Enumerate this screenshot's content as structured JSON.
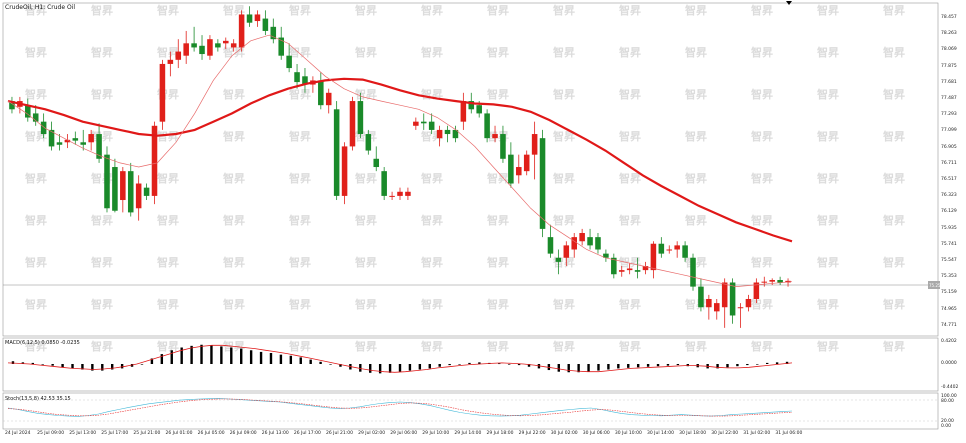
{
  "title": "CrudeOil, H1: Crude Oil",
  "price_axis": [
    "78.457",
    "78.263",
    "78.069",
    "77.875",
    "77.681",
    "77.487",
    "77.293",
    "77.099",
    "76.905",
    "76.711",
    "76.517",
    "76.323",
    "76.129",
    "75.935",
    "75.741",
    "75.547",
    "75.353",
    "75.159",
    "74.965",
    "74.771"
  ],
  "current_price_label": "75.259",
  "macd_label": "MACD(6,12,5) 0.0850 -0.0235",
  "macd_axis": [
    "0.4202",
    "0.0000",
    "-0.4402"
  ],
  "stoch_label": "Stoch(13,5,8) 42.53 35.15",
  "stoch_axis": [
    "100.00",
    "80.00",
    "20.00",
    "0.00"
  ],
  "time_labels": [
    "24 Jul 2024",
    "25 Jul 09:00",
    "25 Jul 13:00",
    "25 Jul 17:00",
    "25 Jul 21:00",
    "26 Jul 01:00",
    "26 Jul 05:00",
    "26 Jul 09:00",
    "26 Jul 13:00",
    "26 Jul 17:00",
    "26 Jul 21:00",
    "29 Jul 02:00",
    "29 Jul 06:00",
    "29 Jul 10:00",
    "29 Jul 14:00",
    "29 Jul 18:00",
    "29 Jul 22:00",
    "30 Jul 02:00",
    "30 Jul 06:00",
    "30 Jul 10:00",
    "30 Jul 14:00",
    "30 Jul 18:00",
    "30 Jul 22:00",
    "31 Jul 02:00",
    "31 Jul 06:00"
  ],
  "watermark_text": "智昇",
  "colors": {
    "bull": "#e0201a",
    "bear": "#1a8a2a",
    "ma_slow": "#e01818",
    "ma_fast": "#e86a6a",
    "macd_line": "#e01818",
    "macd_hist": "#000000",
    "stoch_main": "#40b8d8",
    "stoch_signal": "#e83030"
  },
  "chart_data": {
    "type": "candlestick",
    "title": "CrudeOil, H1: Crude Oil",
    "ylim": [
      74.6,
      78.6
    ],
    "candles": [
      {
        "o": 77.45,
        "h": 77.5,
        "l": 77.3,
        "c": 77.35
      },
      {
        "o": 77.38,
        "h": 77.5,
        "l": 77.3,
        "c": 77.45
      },
      {
        "o": 77.4,
        "h": 77.48,
        "l": 77.2,
        "c": 77.25
      },
      {
        "o": 77.3,
        "h": 77.4,
        "l": 77.15,
        "c": 77.2
      },
      {
        "o": 77.2,
        "h": 77.3,
        "l": 77.0,
        "c": 77.05
      },
      {
        "o": 77.1,
        "h": 77.2,
        "l": 76.85,
        "c": 76.9
      },
      {
        "o": 76.95,
        "h": 77.05,
        "l": 76.85,
        "c": 76.92
      },
      {
        "o": 76.95,
        "h": 77.05,
        "l": 76.88,
        "c": 76.98
      },
      {
        "o": 77.0,
        "h": 77.08,
        "l": 76.92,
        "c": 76.97
      },
      {
        "o": 76.95,
        "h": 77.1,
        "l": 76.85,
        "c": 76.92
      },
      {
        "o": 76.95,
        "h": 77.1,
        "l": 76.85,
        "c": 77.05
      },
      {
        "o": 77.05,
        "h": 77.18,
        "l": 76.7,
        "c": 76.75
      },
      {
        "o": 76.8,
        "h": 76.9,
        "l": 76.1,
        "c": 76.15
      },
      {
        "o": 76.65,
        "h": 76.75,
        "l": 76.1,
        "c": 76.12
      },
      {
        "o": 76.25,
        "h": 76.65,
        "l": 76.1,
        "c": 76.6
      },
      {
        "o": 76.6,
        "h": 76.7,
        "l": 76.05,
        "c": 76.1
      },
      {
        "o": 76.15,
        "h": 76.55,
        "l": 76.0,
        "c": 76.45
      },
      {
        "o": 76.4,
        "h": 76.45,
        "l": 76.25,
        "c": 76.3
      },
      {
        "o": 76.3,
        "h": 77.2,
        "l": 76.2,
        "c": 77.15
      },
      {
        "o": 77.2,
        "h": 77.95,
        "l": 77.1,
        "c": 77.9
      },
      {
        "o": 77.9,
        "h": 78.05,
        "l": 77.75,
        "c": 77.95
      },
      {
        "o": 77.95,
        "h": 78.2,
        "l": 77.85,
        "c": 78.05
      },
      {
        "o": 78.0,
        "h": 78.3,
        "l": 77.9,
        "c": 78.15
      },
      {
        "o": 78.15,
        "h": 78.35,
        "l": 78.05,
        "c": 78.1
      },
      {
        "o": 78.12,
        "h": 78.25,
        "l": 77.95,
        "c": 78.02
      },
      {
        "o": 78.0,
        "h": 78.25,
        "l": 77.95,
        "c": 78.2
      },
      {
        "o": 78.15,
        "h": 78.2,
        "l": 78.05,
        "c": 78.1
      },
      {
        "o": 78.15,
        "h": 78.22,
        "l": 78.08,
        "c": 78.18
      },
      {
        "o": 78.1,
        "h": 78.2,
        "l": 78.05,
        "c": 78.15
      },
      {
        "o": 78.1,
        "h": 78.55,
        "l": 78.05,
        "c": 78.5
      },
      {
        "o": 78.5,
        "h": 78.6,
        "l": 78.35,
        "c": 78.4
      },
      {
        "o": 78.42,
        "h": 78.55,
        "l": 78.35,
        "c": 78.5
      },
      {
        "o": 78.45,
        "h": 78.55,
        "l": 78.25,
        "c": 78.3
      },
      {
        "o": 78.35,
        "h": 78.45,
        "l": 78.15,
        "c": 78.2
      },
      {
        "o": 78.22,
        "h": 78.35,
        "l": 77.95,
        "c": 78.0
      },
      {
        "o": 78.0,
        "h": 78.15,
        "l": 77.8,
        "c": 77.85
      },
      {
        "o": 77.8,
        "h": 77.9,
        "l": 77.6,
        "c": 77.68
      },
      {
        "o": 77.75,
        "h": 77.85,
        "l": 77.55,
        "c": 77.65
      },
      {
        "o": 77.65,
        "h": 77.75,
        "l": 77.55,
        "c": 77.7
      },
      {
        "o": 77.7,
        "h": 77.8,
        "l": 77.35,
        "c": 77.4
      },
      {
        "o": 77.4,
        "h": 77.6,
        "l": 77.3,
        "c": 77.55
      },
      {
        "o": 77.35,
        "h": 77.45,
        "l": 76.25,
        "c": 76.3
      },
      {
        "o": 76.3,
        "h": 76.95,
        "l": 76.2,
        "c": 76.9
      },
      {
        "o": 76.9,
        "h": 77.5,
        "l": 76.85,
        "c": 77.45
      },
      {
        "o": 77.45,
        "h": 77.55,
        "l": 77.0,
        "c": 77.05
      },
      {
        "o": 77.05,
        "h": 77.1,
        "l": 76.8,
        "c": 76.85
      },
      {
        "o": 76.75,
        "h": 76.9,
        "l": 76.6,
        "c": 76.65
      },
      {
        "o": 76.6,
        "h": 76.65,
        "l": 76.25,
        "c": 76.3
      },
      {
        "o": 76.3,
        "h": 76.35,
        "l": 76.25,
        "c": 76.3
      },
      {
        "o": 76.3,
        "h": 76.4,
        "l": 76.25,
        "c": 76.35
      },
      {
        "o": 76.3,
        "h": 76.4,
        "l": 76.25,
        "c": 76.35
      },
      {
        "o": 77.15,
        "h": 77.25,
        "l": 77.1,
        "c": 77.2
      },
      {
        "o": 77.2,
        "h": 77.3,
        "l": 77.1,
        "c": 77.18
      },
      {
        "o": 77.2,
        "h": 77.3,
        "l": 77.05,
        "c": 77.1
      },
      {
        "o": 77.0,
        "h": 77.15,
        "l": 76.9,
        "c": 77.1
      },
      {
        "o": 77.1,
        "h": 77.15,
        "l": 76.95,
        "c": 77.05
      },
      {
        "o": 77.1,
        "h": 77.15,
        "l": 76.95,
        "c": 77.0
      },
      {
        "o": 77.2,
        "h": 77.55,
        "l": 77.1,
        "c": 77.45
      },
      {
        "o": 77.45,
        "h": 77.55,
        "l": 77.3,
        "c": 77.35
      },
      {
        "o": 77.4,
        "h": 77.45,
        "l": 77.25,
        "c": 77.3
      },
      {
        "o": 77.3,
        "h": 77.35,
        "l": 76.95,
        "c": 77.0
      },
      {
        "o": 77.0,
        "h": 77.15,
        "l": 76.95,
        "c": 77.05
      },
      {
        "o": 77.05,
        "h": 77.15,
        "l": 76.7,
        "c": 76.75
      },
      {
        "o": 76.8,
        "h": 76.95,
        "l": 76.4,
        "c": 76.45
      },
      {
        "o": 76.55,
        "h": 76.8,
        "l": 76.45,
        "c": 76.65
      },
      {
        "o": 76.6,
        "h": 76.85,
        "l": 76.55,
        "c": 76.8
      },
      {
        "o": 76.8,
        "h": 77.2,
        "l": 76.5,
        "c": 77.05
      },
      {
        "o": 77.0,
        "h": 77.1,
        "l": 75.8,
        "c": 75.9
      },
      {
        "o": 75.8,
        "h": 75.95,
        "l": 75.55,
        "c": 75.6
      },
      {
        "o": 75.55,
        "h": 75.65,
        "l": 75.35,
        "c": 75.5
      },
      {
        "o": 75.55,
        "h": 75.75,
        "l": 75.45,
        "c": 75.7
      },
      {
        "o": 75.65,
        "h": 75.85,
        "l": 75.55,
        "c": 75.8
      },
      {
        "o": 75.75,
        "h": 75.9,
        "l": 75.7,
        "c": 75.85
      },
      {
        "o": 75.8,
        "h": 75.9,
        "l": 75.65,
        "c": 75.7
      },
      {
        "o": 75.8,
        "h": 75.85,
        "l": 75.6,
        "c": 75.65
      },
      {
        "o": 75.6,
        "h": 75.65,
        "l": 75.5,
        "c": 75.55
      },
      {
        "o": 75.55,
        "h": 75.6,
        "l": 75.3,
        "c": 75.35
      },
      {
        "o": 75.38,
        "h": 75.45,
        "l": 75.32,
        "c": 75.4
      },
      {
        "o": 75.4,
        "h": 75.48,
        "l": 75.35,
        "c": 75.42
      },
      {
        "o": 75.4,
        "h": 75.55,
        "l": 75.3,
        "c": 75.38
      },
      {
        "o": 75.4,
        "h": 75.5,
        "l": 75.35,
        "c": 75.45
      },
      {
        "o": 75.4,
        "h": 75.75,
        "l": 75.3,
        "c": 75.72
      },
      {
        "o": 75.72,
        "h": 75.8,
        "l": 75.55,
        "c": 75.6
      },
      {
        "o": 75.65,
        "h": 75.7,
        "l": 75.6,
        "c": 75.65
      },
      {
        "o": 75.65,
        "h": 75.75,
        "l": 75.55,
        "c": 75.7
      },
      {
        "o": 75.7,
        "h": 75.75,
        "l": 75.5,
        "c": 75.55
      },
      {
        "o": 75.55,
        "h": 75.6,
        "l": 75.15,
        "c": 75.2
      },
      {
        "o": 75.2,
        "h": 75.3,
        "l": 74.9,
        "c": 74.95
      },
      {
        "o": 74.95,
        "h": 75.1,
        "l": 74.8,
        "c": 75.05
      },
      {
        "o": 74.9,
        "h": 75.05,
        "l": 74.8,
        "c": 75.0
      },
      {
        "o": 74.95,
        "h": 75.3,
        "l": 74.7,
        "c": 75.25
      },
      {
        "o": 75.25,
        "h": 75.3,
        "l": 74.75,
        "c": 74.85
      },
      {
        "o": 74.95,
        "h": 75.0,
        "l": 74.7,
        "c": 74.95
      },
      {
        "o": 74.95,
        "h": 75.1,
        "l": 74.9,
        "c": 75.05
      },
      {
        "o": 75.05,
        "h": 75.3,
        "l": 75.0,
        "c": 75.25
      },
      {
        "o": 75.25,
        "h": 75.32,
        "l": 75.2,
        "c": 75.26
      },
      {
        "o": 75.26,
        "h": 75.3,
        "l": 75.22,
        "c": 75.28
      },
      {
        "o": 75.28,
        "h": 75.32,
        "l": 75.22,
        "c": 75.25
      },
      {
        "o": 75.25,
        "h": 75.3,
        "l": 75.2,
        "c": 75.27
      }
    ],
    "ma_slow": [
      77.45,
      77.4,
      77.35,
      77.28,
      77.2,
      77.15,
      77.1,
      77.05,
      77.03,
      77.05,
      77.1,
      77.2,
      77.3,
      77.42,
      77.52,
      77.6,
      77.66,
      77.7,
      77.72,
      77.71,
      77.65,
      77.58,
      77.52,
      77.48,
      77.45,
      77.42,
      77.41,
      77.38,
      77.32,
      77.22,
      77.1,
      76.98,
      76.85,
      76.7,
      76.55,
      76.42,
      76.3,
      76.18,
      76.08,
      75.98,
      75.9,
      75.82,
      75.75
    ],
    "ma_fast": [
      77.45,
      77.3,
      77.12,
      77.0,
      76.88,
      76.78,
      76.7,
      76.65,
      76.7,
      76.95,
      77.3,
      77.7,
      78.0,
      78.18,
      78.25,
      78.15,
      77.95,
      77.75,
      77.6,
      77.5,
      77.45,
      77.4,
      77.35,
      77.25,
      77.1,
      76.9,
      76.65,
      76.4,
      76.15,
      75.95,
      75.8,
      75.65,
      75.55,
      75.5,
      75.45,
      75.4,
      75.35,
      75.3,
      75.25,
      75.2,
      75.22,
      75.24,
      75.26
    ],
    "macd_hist": [
      0.05,
      0.03,
      0.02,
      0.0,
      -0.03,
      -0.06,
      -0.08,
      -0.1,
      -0.12,
      -0.12,
      -0.1,
      -0.08,
      -0.05,
      0.0,
      0.1,
      0.18,
      0.25,
      0.3,
      0.33,
      0.35,
      0.34,
      0.32,
      0.3,
      0.28,
      0.25,
      0.22,
      0.2,
      0.17,
      0.15,
      0.12,
      0.08,
      0.04,
      0.0,
      -0.05,
      -0.1,
      -0.14,
      -0.16,
      -0.17,
      -0.16,
      -0.14,
      -0.12,
      -0.1,
      -0.08,
      -0.05,
      -0.02,
      0.0,
      0.02,
      0.03,
      0.02,
      0.01,
      0.0,
      -0.02,
      -0.05,
      -0.08,
      -0.11,
      -0.14,
      -0.15,
      -0.15,
      -0.14,
      -0.12,
      -0.1,
      -0.08,
      -0.07,
      -0.06,
      -0.05,
      -0.04,
      -0.03,
      -0.02,
      -0.04,
      -0.06,
      -0.08,
      -0.08,
      -0.06,
      -0.04,
      -0.02,
      0.0,
      0.02,
      0.03,
      0.04
    ],
    "macd_signal": [
      0.02,
      0.01,
      0.0,
      -0.02,
      -0.04,
      -0.06,
      -0.08,
      -0.09,
      -0.1,
      -0.09,
      -0.07,
      -0.04,
      0.0,
      0.06,
      0.12,
      0.18,
      0.24,
      0.29,
      0.32,
      0.34,
      0.34,
      0.32,
      0.3,
      0.28,
      0.25,
      0.22,
      0.19,
      0.15,
      0.11,
      0.07,
      0.03,
      -0.01,
      -0.05,
      -0.09,
      -0.12,
      -0.14,
      -0.15,
      -0.14,
      -0.12,
      -0.1,
      -0.07,
      -0.05,
      -0.03,
      -0.01,
      0.0,
      0.01,
      0.02,
      0.01,
      0.0,
      -0.02,
      -0.05,
      -0.08,
      -0.11,
      -0.13,
      -0.14,
      -0.14,
      -0.12,
      -0.1,
      -0.08,
      -0.07,
      -0.06,
      -0.05,
      -0.04,
      -0.03,
      -0.03,
      -0.04,
      -0.06,
      -0.07,
      -0.07,
      -0.06,
      -0.04,
      -0.02,
      0.0,
      0.02
    ],
    "stoch_main": [
      60,
      55,
      48,
      42,
      38,
      35,
      33,
      32,
      35,
      40,
      48,
      55,
      62,
      68,
      74,
      78,
      82,
      86,
      88,
      90,
      91,
      92,
      90,
      88,
      86,
      84,
      82,
      80,
      76,
      72,
      68,
      64,
      60,
      58,
      60,
      64,
      70,
      75,
      78,
      80,
      78,
      74,
      68,
      60,
      52,
      45,
      40,
      36,
      34,
      33,
      34,
      36,
      40,
      44,
      48,
      52,
      55,
      58,
      60,
      55,
      48,
      42,
      38,
      36,
      35,
      34,
      36,
      38,
      36,
      34,
      33,
      35,
      38,
      40,
      42,
      44,
      46,
      48,
      50
    ],
    "stoch_signal": [
      58,
      56,
      52,
      47,
      42,
      38,
      36,
      34,
      34,
      36,
      40,
      46,
      52,
      58,
      64,
      70,
      75,
      80,
      84,
      87,
      89,
      90,
      90,
      89,
      87,
      85,
      83,
      81,
      78,
      75,
      71,
      67,
      63,
      60,
      59,
      60,
      63,
      67,
      71,
      75,
      77,
      76,
      73,
      68,
      62,
      55,
      49,
      44,
      40,
      37,
      35,
      34,
      35,
      37,
      40,
      43,
      46,
      50,
      53,
      55,
      53,
      49,
      45,
      41,
      38,
      36,
      35,
      35,
      35,
      34,
      33,
      33,
      34,
      36,
      38,
      40,
      42,
      44,
      45
    ]
  }
}
